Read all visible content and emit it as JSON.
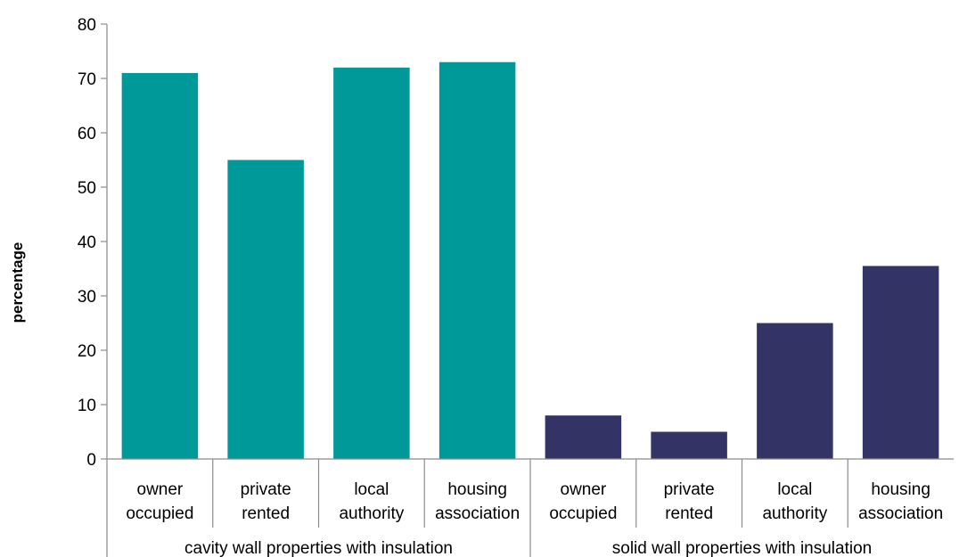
{
  "chart_data": {
    "type": "bar",
    "title": "",
    "xlabel": "",
    "ylabel": "percentage",
    "ylim": [
      0,
      80
    ],
    "yticks": [
      0,
      10,
      20,
      30,
      40,
      50,
      60,
      70,
      80
    ],
    "grid": false,
    "legend": "none",
    "groups": [
      {
        "label": "cavity wall properties with insulation",
        "color": "#009999",
        "categories": [
          {
            "line1": "owner",
            "line2": "occupied",
            "value": 71
          },
          {
            "line1": "private",
            "line2": "rented",
            "value": 55
          },
          {
            "line1": "local",
            "line2": "authority",
            "value": 72
          },
          {
            "line1": "housing",
            "line2": "association",
            "value": 73
          }
        ]
      },
      {
        "label": "solid wall properties with insulation",
        "color": "#333366",
        "categories": [
          {
            "line1": "owner",
            "line2": "occupied",
            "value": 8
          },
          {
            "line1": "private",
            "line2": "rented",
            "value": 5
          },
          {
            "line1": "local",
            "line2": "authority",
            "value": 25
          },
          {
            "line1": "housing",
            "line2": "association",
            "value": 35.5
          }
        ]
      }
    ]
  }
}
